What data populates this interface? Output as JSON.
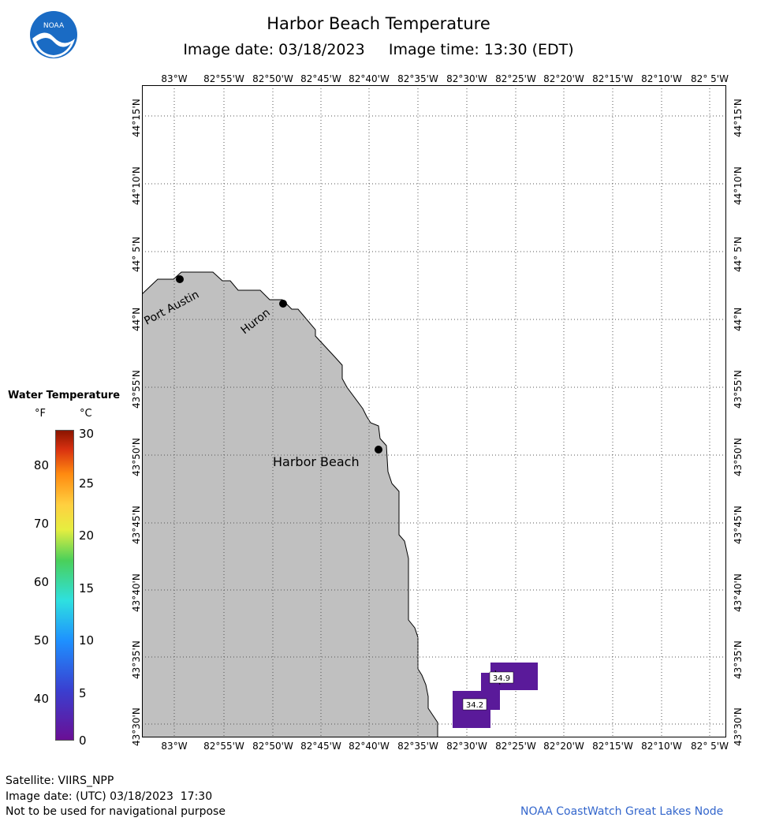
{
  "header": {
    "title": "Harbor Beach Temperature",
    "image_date_label": "Image date:",
    "image_date": "03/18/2023",
    "image_time_label": "Image time:",
    "image_time": "13:30 (EDT)"
  },
  "axes": {
    "lon_labels": [
      "83°W",
      "82°55'W",
      "82°50'W",
      "82°45'W",
      "82°40'W",
      "82°35'W",
      "82°30'W",
      "82°25'W",
      "82°20'W",
      "82°15'W",
      "82°10'W",
      "82° 5'W"
    ],
    "lat_labels": [
      "44°15'N",
      "44°10'N",
      "44° 5'N",
      "44°N",
      "43°55'N",
      "43°50'N",
      "43°45'N",
      "43°40'N",
      "43°35'N",
      "43°30'N"
    ]
  },
  "places": [
    {
      "name": "Port Austin"
    },
    {
      "name": "Huron"
    },
    {
      "name": "Harbor Beach"
    }
  ],
  "readings": [
    "34.9",
    "34.2"
  ],
  "legend": {
    "title": "Water Temperature",
    "unit_f": "°F",
    "unit_c": "°C",
    "f_ticks": [
      "80",
      "70",
      "60",
      "50",
      "40"
    ],
    "c_ticks": [
      "30",
      "25",
      "20",
      "15",
      "10",
      "5",
      "0"
    ]
  },
  "footer": {
    "satellite": "Satellite: VIIRS_NPP",
    "utc_date": "Image date: (UTC) 03/18/2023  17:30",
    "disclaimer": "Not to be used for navigational purpose",
    "credit": "NOAA CoastWatch Great Lakes Node"
  },
  "colors": {
    "land": "#c0c0c0",
    "water": "#ffffff",
    "sst_pixel": "#5a1a9a",
    "grid": "#555555",
    "credit": "#3366cc"
  }
}
